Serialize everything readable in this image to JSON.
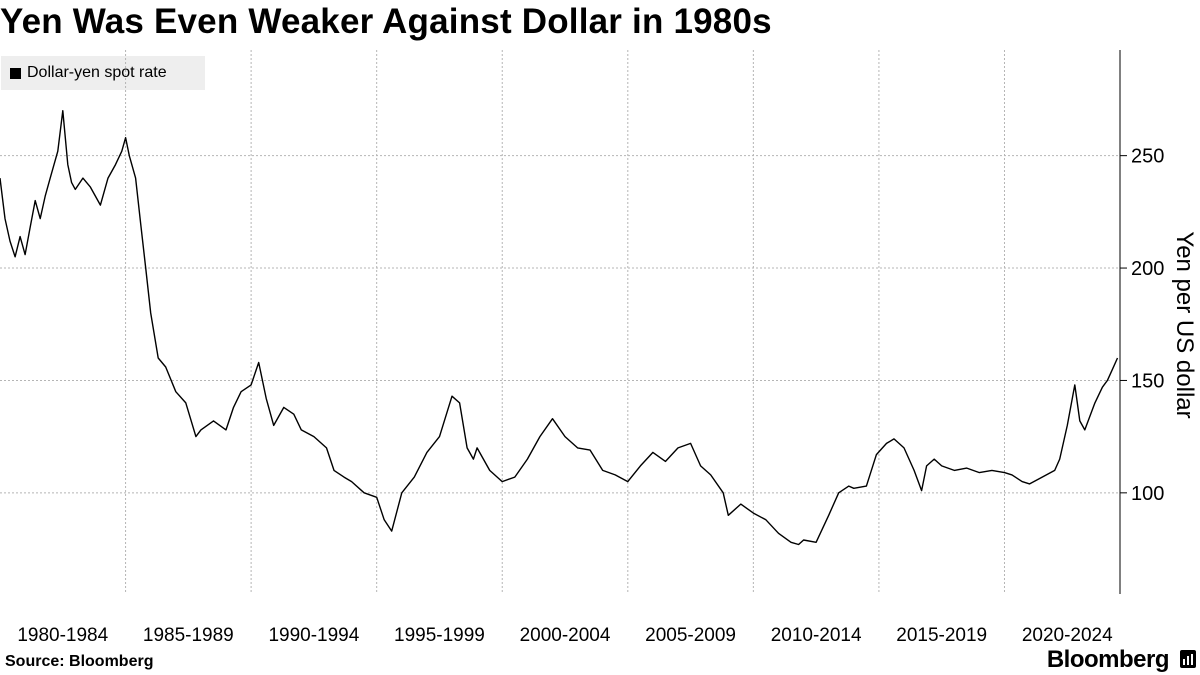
{
  "title": "Yen Was Even Weaker Against Dollar in 1980s",
  "legend": {
    "label": "Dollar-yen spot rate",
    "color": "#000000"
  },
  "source": "Source: Bloomberg",
  "brand": "Bloomberg",
  "chart_data": {
    "type": "line",
    "title": "Yen Was Even Weaker Against Dollar in 1980s",
    "xlabel": "",
    "ylabel": "Yen per US dollar",
    "xlim": [
      1980,
      2024.6
    ],
    "ylim": [
      55,
      297
    ],
    "grid": true,
    "legend_position": "top-left",
    "y_ticks": [
      100,
      150,
      200,
      250
    ],
    "x_tick_labels": [
      "1980-1984",
      "1985-1989",
      "1990-1994",
      "1995-1999",
      "2000-2004",
      "2005-2009",
      "2010-2014",
      "2015-2019",
      "2020-2024"
    ],
    "series": [
      {
        "name": "Dollar-yen spot rate",
        "color": "#000000",
        "x": [
          1980.0,
          1980.2,
          1980.4,
          1980.6,
          1980.8,
          1981.0,
          1981.2,
          1981.4,
          1981.6,
          1981.8,
          1982.0,
          1982.3,
          1982.5,
          1982.7,
          1982.85,
          1983.0,
          1983.3,
          1983.6,
          1984.0,
          1984.3,
          1984.6,
          1984.85,
          1985.0,
          1985.15,
          1985.4,
          1985.6,
          1985.8,
          1986.0,
          1986.3,
          1986.6,
          1987.0,
          1987.4,
          1987.8,
          1988.0,
          1988.5,
          1989.0,
          1989.3,
          1989.6,
          1990.0,
          1990.3,
          1990.6,
          1990.9,
          1991.3,
          1991.7,
          1992.0,
          1992.5,
          1993.0,
          1993.3,
          1993.7,
          1994.0,
          1994.5,
          1995.0,
          1995.3,
          1995.6,
          1996.0,
          1996.5,
          1997.0,
          1997.5,
          1998.0,
          1998.3,
          1998.6,
          1998.85,
          1999.0,
          1999.5,
          2000.0,
          2000.5,
          2001.0,
          2001.5,
          2002.0,
          2002.5,
          2003.0,
          2003.5,
          2004.0,
          2004.5,
          2005.0,
          2005.5,
          2006.0,
          2006.5,
          2007.0,
          2007.5,
          2007.9,
          2008.3,
          2008.8,
          2009.0,
          2009.5,
          2010.0,
          2010.5,
          2011.0,
          2011.5,
          2011.8,
          2012.0,
          2012.5,
          2013.0,
          2013.4,
          2013.8,
          2014.0,
          2014.5,
          2014.9,
          2015.3,
          2015.6,
          2016.0,
          2016.4,
          2016.7,
          2016.9,
          2017.2,
          2017.5,
          2018.0,
          2018.5,
          2019.0,
          2019.5,
          2020.0,
          2020.3,
          2020.7,
          2021.0,
          2021.5,
          2022.0,
          2022.2,
          2022.5,
          2022.8,
          2023.0,
          2023.2,
          2023.6,
          2023.9,
          2024.1,
          2024.3,
          2024.5
        ],
        "values": [
          240,
          222,
          212,
          205,
          214,
          206,
          218,
          230,
          222,
          232,
          240,
          252,
          270,
          246,
          238,
          235,
          240,
          236,
          228,
          240,
          246,
          252,
          258,
          250,
          240,
          220,
          200,
          180,
          160,
          156,
          145,
          140,
          125,
          128,
          132,
          128,
          138,
          145,
          148,
          158,
          142,
          130,
          138,
          135,
          128,
          125,
          120,
          110,
          107,
          105,
          100,
          98,
          88,
          83,
          100,
          107,
          118,
          125,
          143,
          140,
          120,
          115,
          120,
          110,
          105,
          107,
          115,
          125,
          133,
          125,
          120,
          119,
          110,
          108,
          105,
          112,
          118,
          114,
          120,
          122,
          112,
          108,
          100,
          90,
          95,
          91,
          88,
          82,
          78,
          77,
          79,
          78,
          90,
          100,
          103,
          102,
          103,
          117,
          122,
          124,
          120,
          110,
          101,
          112,
          115,
          112,
          110,
          111,
          109,
          110,
          109,
          108,
          105,
          104,
          107,
          110,
          115,
          130,
          148,
          132,
          128,
          140,
          147,
          150,
          155,
          160
        ]
      }
    ]
  }
}
